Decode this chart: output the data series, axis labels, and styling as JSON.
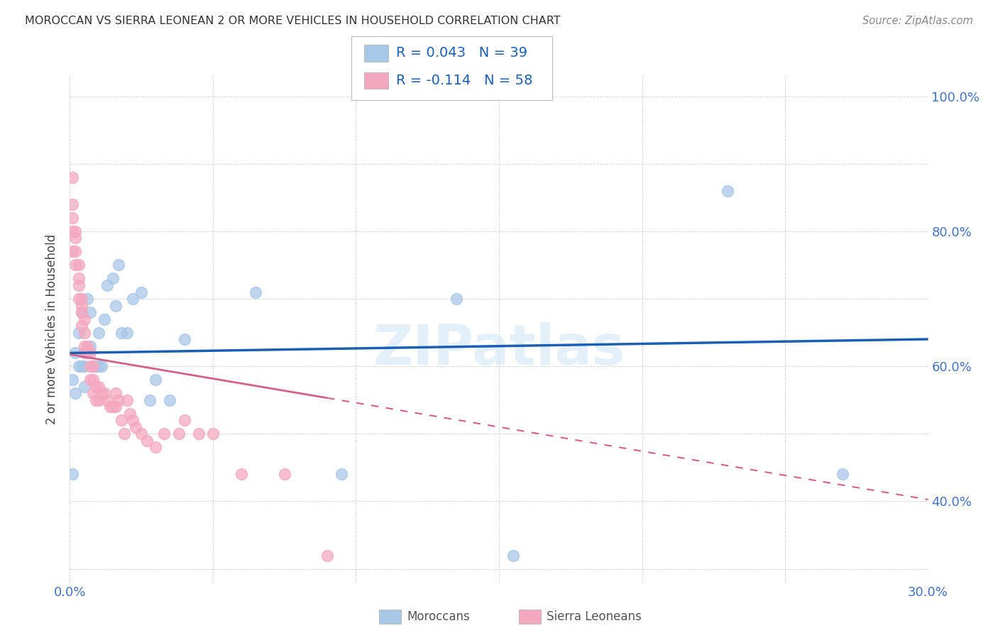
{
  "title": "MOROCCAN VS SIERRA LEONEAN 2 OR MORE VEHICLES IN HOUSEHOLD CORRELATION CHART",
  "source": "Source: ZipAtlas.com",
  "ylabel": "2 or more Vehicles in Household",
  "xmin": 0.0,
  "xmax": 0.3,
  "ymin": 0.28,
  "ymax": 1.03,
  "moroccan_R": 0.043,
  "moroccan_N": 39,
  "sierralone_R": -0.114,
  "sierralone_N": 58,
  "moroccan_color": "#a8c8e8",
  "sierralone_color": "#f4a8c0",
  "moroccan_line_color": "#1a5fb4",
  "sierralone_line_color": "#d4608a",
  "watermark": "ZIPatlas",
  "moroccan_x": [
    0.001,
    0.001,
    0.002,
    0.002,
    0.003,
    0.003,
    0.004,
    0.004,
    0.005,
    0.005,
    0.005,
    0.006,
    0.006,
    0.007,
    0.007,
    0.008,
    0.009,
    0.01,
    0.01,
    0.011,
    0.012,
    0.013,
    0.015,
    0.016,
    0.017,
    0.018,
    0.02,
    0.022,
    0.025,
    0.028,
    0.03,
    0.035,
    0.04,
    0.065,
    0.095,
    0.135,
    0.155,
    0.23,
    0.27
  ],
  "moroccan_y": [
    0.44,
    0.58,
    0.56,
    0.62,
    0.6,
    0.65,
    0.6,
    0.68,
    0.57,
    0.6,
    0.62,
    0.62,
    0.7,
    0.63,
    0.68,
    0.6,
    0.6,
    0.6,
    0.65,
    0.6,
    0.67,
    0.72,
    0.73,
    0.69,
    0.75,
    0.65,
    0.65,
    0.7,
    0.71,
    0.55,
    0.58,
    0.55,
    0.64,
    0.71,
    0.44,
    0.7,
    0.32,
    0.86,
    0.44
  ],
  "sierralone_x": [
    0.001,
    0.001,
    0.001,
    0.001,
    0.001,
    0.002,
    0.002,
    0.002,
    0.002,
    0.003,
    0.003,
    0.003,
    0.003,
    0.004,
    0.004,
    0.004,
    0.004,
    0.005,
    0.005,
    0.005,
    0.005,
    0.006,
    0.006,
    0.007,
    0.007,
    0.007,
    0.008,
    0.008,
    0.008,
    0.009,
    0.009,
    0.01,
    0.01,
    0.011,
    0.012,
    0.013,
    0.014,
    0.015,
    0.016,
    0.016,
    0.017,
    0.018,
    0.019,
    0.02,
    0.021,
    0.022,
    0.023,
    0.025,
    0.027,
    0.03,
    0.033,
    0.038,
    0.04,
    0.045,
    0.05,
    0.06,
    0.075,
    0.09
  ],
  "sierralone_y": [
    0.88,
    0.84,
    0.82,
    0.8,
    0.77,
    0.8,
    0.79,
    0.77,
    0.75,
    0.75,
    0.73,
    0.72,
    0.7,
    0.7,
    0.69,
    0.68,
    0.66,
    0.67,
    0.65,
    0.63,
    0.62,
    0.63,
    0.62,
    0.62,
    0.6,
    0.58,
    0.6,
    0.58,
    0.56,
    0.57,
    0.55,
    0.57,
    0.55,
    0.56,
    0.56,
    0.55,
    0.54,
    0.54,
    0.54,
    0.56,
    0.55,
    0.52,
    0.5,
    0.55,
    0.53,
    0.52,
    0.51,
    0.5,
    0.49,
    0.48,
    0.5,
    0.5,
    0.52,
    0.5,
    0.5,
    0.44,
    0.44,
    0.32
  ]
}
